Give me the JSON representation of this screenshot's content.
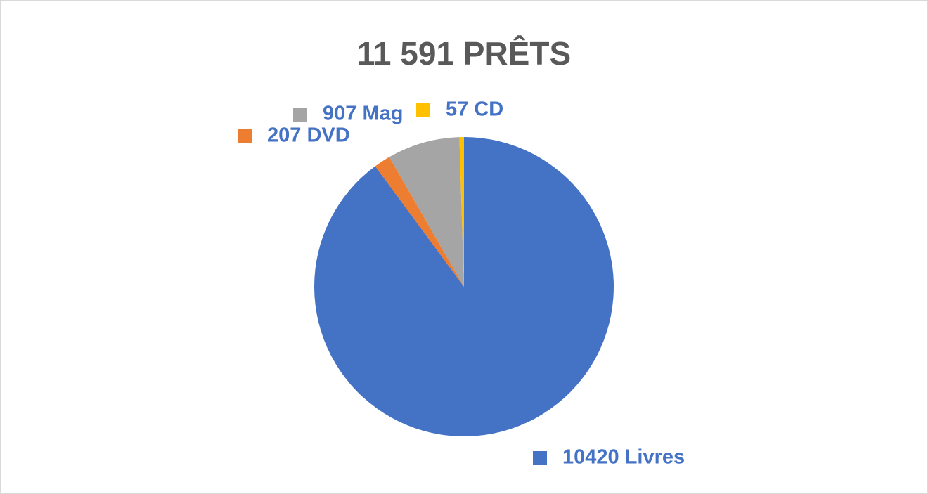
{
  "chart_data": {
    "type": "pie",
    "title": "11 591 PRÊTS",
    "values": [
      10420,
      207,
      907,
      57
    ],
    "value_labels": [
      "10420 Livres",
      "207 DVD",
      "907 Mag",
      "57 CD"
    ],
    "colors": [
      "#4472c4",
      "#ed7d31",
      "#a5a5a5",
      "#ffc000"
    ],
    "label_color": "#4472c4"
  }
}
